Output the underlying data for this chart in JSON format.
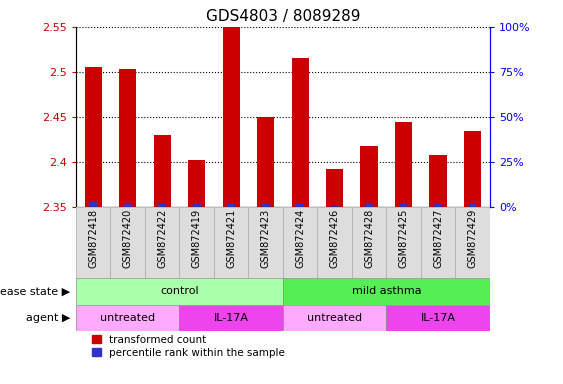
{
  "title": "GDS4803 / 8089289",
  "samples": [
    "GSM872418",
    "GSM872420",
    "GSM872422",
    "GSM872419",
    "GSM872421",
    "GSM872423",
    "GSM872424",
    "GSM872426",
    "GSM872428",
    "GSM872425",
    "GSM872427",
    "GSM872429"
  ],
  "transformed_count": [
    2.505,
    2.503,
    2.43,
    2.403,
    2.555,
    2.45,
    2.515,
    2.393,
    2.418,
    2.445,
    2.408,
    2.435
  ],
  "percentile_rank": [
    3,
    2,
    2,
    2,
    2,
    2,
    2,
    1,
    2,
    2,
    2,
    2
  ],
  "ylim_left": [
    2.35,
    2.55
  ],
  "ylim_right": [
    0,
    100
  ],
  "yticks_left": [
    2.35,
    2.4,
    2.45,
    2.5,
    2.55
  ],
  "yticks_right": [
    0,
    25,
    50,
    75,
    100
  ],
  "ytick_labels_right": [
    "0%",
    "25%",
    "50%",
    "75%",
    "100%"
  ],
  "bar_color_red": "#CC0000",
  "bar_color_blue": "#3333CC",
  "grid_color": "#000000",
  "disease_state_groups": [
    {
      "label": "control",
      "start": 0,
      "end": 5,
      "color": "#AAFFAA"
    },
    {
      "label": "mild asthma",
      "start": 6,
      "end": 11,
      "color": "#55EE55"
    }
  ],
  "agent_groups": [
    {
      "label": "untreated",
      "start": 0,
      "end": 2,
      "color": "#FFAAFF"
    },
    {
      "label": "IL-17A",
      "start": 3,
      "end": 5,
      "color": "#EE44EE"
    },
    {
      "label": "untreated",
      "start": 6,
      "end": 8,
      "color": "#FFAAFF"
    },
    {
      "label": "IL-17A",
      "start": 9,
      "end": 11,
      "color": "#EE44EE"
    }
  ],
  "legend_red_label": "transformed count",
  "legend_blue_label": "percentile rank within the sample",
  "disease_state_label": "disease state",
  "agent_label": "agent",
  "title_fontsize": 11,
  "tick_fontsize": 8,
  "bar_width": 0.5,
  "label_fontsize": 8,
  "sample_label_fontsize": 7,
  "row_label_fontsize": 8,
  "gray_bg": "#DDDDDD"
}
